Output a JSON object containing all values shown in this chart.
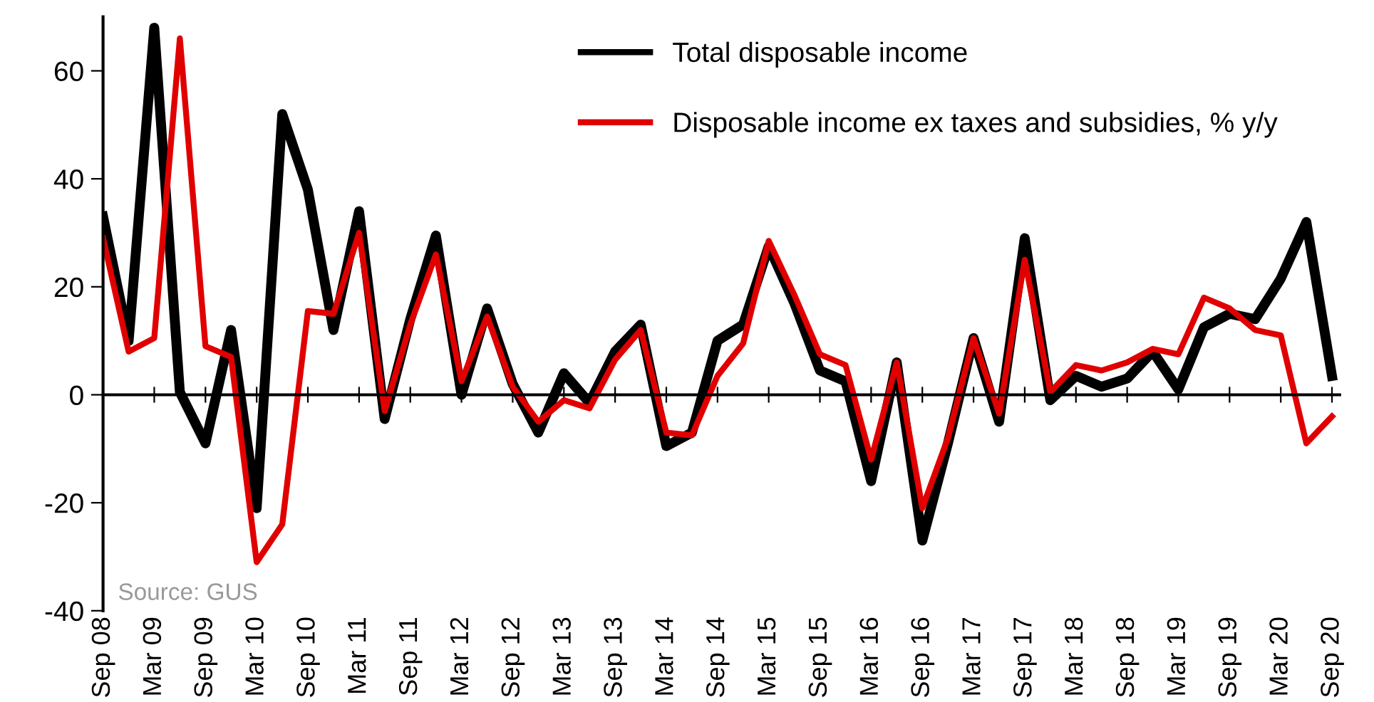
{
  "chart_data": {
    "type": "line",
    "categories": [
      "Sep 08",
      null,
      "Mar 09",
      null,
      "Sep 09",
      null,
      "Mar 10",
      null,
      "Sep 10",
      null,
      "Mar 11",
      null,
      "Sep 11",
      null,
      "Mar 12",
      null,
      "Sep 12",
      null,
      "Mar 13",
      null,
      "Sep 13",
      null,
      "Mar 14",
      null,
      "Sep 14",
      null,
      "Mar 15",
      null,
      "Sep 15",
      null,
      "Mar 16",
      null,
      "Sep 16",
      null,
      "Mar 17",
      null,
      "Sep 17",
      null,
      "Mar 18",
      null,
      "Sep 18",
      null,
      "Mar 19",
      null,
      "Sep 19",
      null,
      "Mar 20",
      null,
      "Sep 20"
    ],
    "series": [
      {
        "name": "Total disposable income",
        "color": "#000000",
        "values": [
          33,
          10,
          68,
          0.5,
          -9,
          12,
          -21,
          52,
          38,
          12,
          34,
          -4.5,
          14,
          29.5,
          0,
          16,
          2,
          -7,
          4,
          -1.5,
          8,
          13,
          -9.5,
          -7,
          10,
          13,
          27.5,
          17,
          4.5,
          2.5,
          -16,
          6,
          -27,
          -9,
          10.5,
          -5,
          29,
          -1,
          3.5,
          1.5,
          3,
          8,
          1,
          12.5,
          15,
          14,
          21.5,
          32,
          3.5
        ]
      },
      {
        "name": "Disposable income ex taxes and subsidies, % y/y",
        "color": "#e00000",
        "values": [
          29,
          8,
          10.5,
          66,
          9,
          7,
          -31,
          -24,
          15.5,
          15,
          30,
          -3,
          13,
          26,
          2.5,
          14.5,
          1.5,
          -5,
          -1,
          -2.5,
          6.5,
          12,
          -7,
          -7.5,
          3.5,
          9.5,
          28.5,
          18.5,
          7.5,
          5.5,
          -12,
          6,
          -21,
          -8,
          10.5,
          -3.5,
          25,
          0.5,
          5.5,
          4.5,
          6,
          8.5,
          7.5,
          18,
          16,
          12,
          11,
          -9,
          -4
        ]
      }
    ],
    "ylim": [
      -40,
      70
    ],
    "yticks": [
      -40,
      -20,
      0,
      20,
      40,
      60
    ],
    "legend": "top right",
    "marker": "none",
    "line_style": "solid",
    "annotations": [
      "Source: GUS"
    ]
  }
}
